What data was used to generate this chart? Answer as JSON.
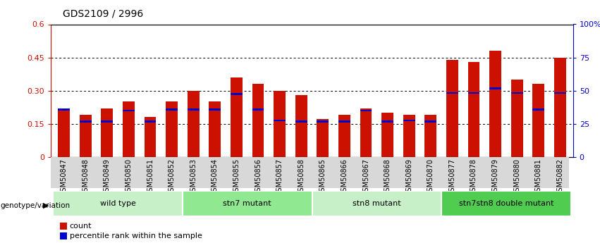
{
  "title": "GDS2109 / 2996",
  "samples": [
    "GSM50847",
    "GSM50848",
    "GSM50849",
    "GSM50850",
    "GSM50851",
    "GSM50852",
    "GSM50853",
    "GSM50854",
    "GSM50855",
    "GSM50856",
    "GSM50857",
    "GSM50858",
    "GSM50865",
    "GSM50866",
    "GSM50867",
    "GSM50868",
    "GSM50869",
    "GSM50870",
    "GSM50877",
    "GSM50878",
    "GSM50879",
    "GSM50880",
    "GSM50881",
    "GSM50882"
  ],
  "count_values": [
    0.22,
    0.19,
    0.22,
    0.25,
    0.18,
    0.25,
    0.3,
    0.25,
    0.36,
    0.33,
    0.3,
    0.28,
    0.17,
    0.19,
    0.22,
    0.2,
    0.19,
    0.19,
    0.44,
    0.43,
    0.48,
    0.35,
    0.33,
    0.45
  ],
  "percentile_values": [
    0.21,
    0.155,
    0.155,
    0.205,
    0.155,
    0.21,
    0.21,
    0.21,
    0.28,
    0.21,
    0.16,
    0.155,
    0.155,
    0.155,
    0.205,
    0.155,
    0.16,
    0.155,
    0.285,
    0.285,
    0.305,
    0.285,
    0.21,
    0.285
  ],
  "groups": [
    {
      "label": "wild type",
      "start": 0,
      "end": 6,
      "color": "#c8f0c8"
    },
    {
      "label": "stn7 mutant",
      "start": 6,
      "end": 12,
      "color": "#90e890"
    },
    {
      "label": "stn8 mutant",
      "start": 12,
      "end": 18,
      "color": "#c8f0c8"
    },
    {
      "label": "stn7stn8 double mutant",
      "start": 18,
      "end": 24,
      "color": "#50cc50"
    }
  ],
  "bar_color": "#cc1100",
  "percentile_color": "#0000cc",
  "ylim_left": [
    0,
    0.6
  ],
  "ylim_right": [
    0,
    100
  ],
  "yticks_left": [
    0,
    0.15,
    0.3,
    0.45,
    0.6
  ],
  "yticks_right": [
    0,
    25,
    50,
    75,
    100
  ],
  "ytick_labels_left": [
    "0",
    "0.15",
    "0.30",
    "0.45",
    "0.6"
  ],
  "ytick_labels_right": [
    "0",
    "25",
    "50",
    "75",
    "100%"
  ],
  "grid_values": [
    0.15,
    0.3,
    0.45
  ],
  "genotype_label": "genotype/variation",
  "legend_count": "count",
  "legend_percentile": "percentile rank within the sample",
  "bar_width": 0.55,
  "xtick_bg": "#d8d8d8"
}
